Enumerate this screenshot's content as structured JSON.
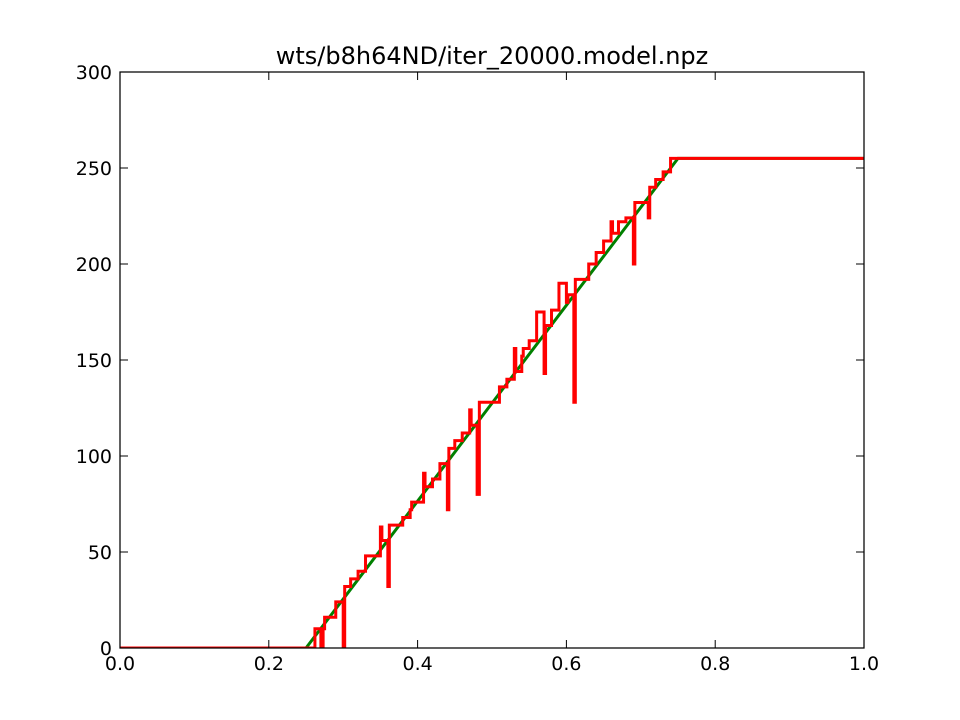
{
  "colors": {
    "background": "#ffffff",
    "axes": "#000000",
    "ideal_line": "#008000",
    "model_line": "#ff0000"
  },
  "chart_data": {
    "type": "line",
    "title": "wts/b8h64ND/iter_20000.model.npz",
    "xlabel": "",
    "ylabel": "",
    "xlim": [
      0.0,
      1.0
    ],
    "ylim": [
      0,
      300
    ],
    "grid": false,
    "x_ticks": [
      "0.0",
      "0.2",
      "0.4",
      "0.6",
      "0.8",
      "1.0"
    ],
    "y_ticks": [
      "0",
      "50",
      "100",
      "150",
      "200",
      "250",
      "300"
    ],
    "x_tick_values": [
      0.0,
      0.2,
      0.4,
      0.6,
      0.8,
      1.0
    ],
    "y_tick_values": [
      0,
      50,
      100,
      150,
      200,
      250,
      300
    ],
    "series": [
      {
        "color": "#008000",
        "width": 3,
        "x": [
          0.0,
          0.25,
          0.75,
          1.0
        ],
        "y": [
          0,
          0,
          255,
          255
        ]
      },
      {
        "color": "#ff0000",
        "width": 3,
        "x": [
          0.0,
          0.262,
          0.262,
          0.27,
          0.27,
          0.273,
          0.273,
          0.275,
          0.275,
          0.276,
          0.276,
          0.29,
          0.29,
          0.3,
          0.3,
          0.302,
          0.302,
          0.31,
          0.31,
          0.32,
          0.32,
          0.33,
          0.33,
          0.34,
          0.34,
          0.35,
          0.35,
          0.352,
          0.352,
          0.36,
          0.36,
          0.362,
          0.362,
          0.38,
          0.38,
          0.39,
          0.39,
          0.392,
          0.392,
          0.408,
          0.408,
          0.41,
          0.41,
          0.42,
          0.42,
          0.43,
          0.43,
          0.44,
          0.44,
          0.442,
          0.442,
          0.45,
          0.45,
          0.46,
          0.46,
          0.47,
          0.47,
          0.472,
          0.472,
          0.48,
          0.48,
          0.483,
          0.483,
          0.51,
          0.51,
          0.52,
          0.52,
          0.53,
          0.53,
          0.532,
          0.532,
          0.54,
          0.54,
          0.542,
          0.542,
          0.55,
          0.55,
          0.56,
          0.56,
          0.57,
          0.57,
          0.572,
          0.572,
          0.58,
          0.58,
          0.59,
          0.59,
          0.6,
          0.6,
          0.602,
          0.602,
          0.61,
          0.61,
          0.612,
          0.612,
          0.63,
          0.63,
          0.64,
          0.64,
          0.65,
          0.65,
          0.66,
          0.66,
          0.662,
          0.662,
          0.67,
          0.67,
          0.68,
          0.68,
          0.69,
          0.69,
          0.692,
          0.692,
          0.7,
          0.7,
          0.71,
          0.71,
          0.712,
          0.712,
          0.72,
          0.72,
          0.73,
          0.73,
          0.74,
          0.74,
          0.75,
          1.0
        ],
        "y": [
          0,
          0,
          10,
          10,
          0,
          0,
          10,
          10,
          16,
          16,
          16,
          16,
          24,
          24,
          0,
          0,
          32,
          32,
          36,
          36,
          40,
          40,
          48,
          48,
          48,
          48,
          63,
          63,
          56,
          56,
          32,
          32,
          64,
          64,
          68,
          68,
          72,
          72,
          76,
          76,
          91,
          91,
          84,
          84,
          88,
          88,
          96,
          96,
          72,
          72,
          104,
          104,
          108,
          108,
          112,
          112,
          124,
          124,
          116,
          116,
          80,
          80,
          128,
          128,
          136,
          136,
          140,
          140,
          156,
          156,
          144,
          144,
          152,
          152,
          156,
          156,
          160,
          160,
          175,
          175,
          143,
          143,
          168,
          168,
          176,
          176,
          190,
          190,
          180,
          180,
          184,
          184,
          128,
          128,
          192,
          192,
          200,
          200,
          206,
          206,
          212,
          212,
          222,
          222,
          216,
          216,
          222,
          222,
          224,
          224,
          200,
          200,
          232,
          232,
          232,
          232,
          224,
          224,
          240,
          240,
          244,
          244,
          248,
          248,
          255,
          255,
          255
        ]
      }
    ]
  }
}
